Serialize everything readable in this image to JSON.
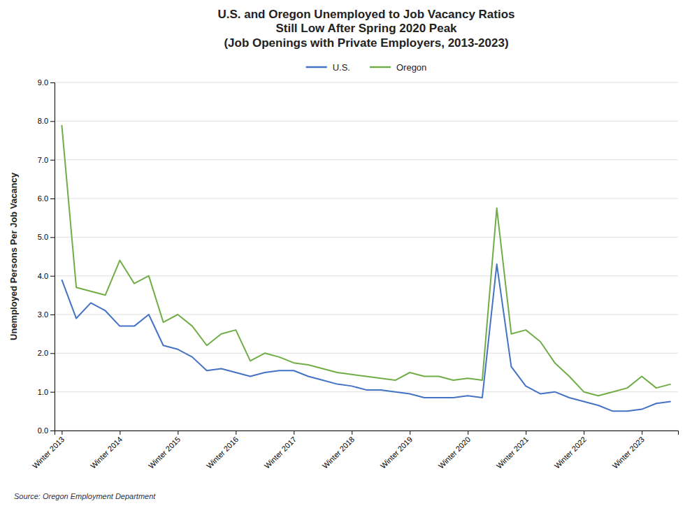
{
  "chart_data": {
    "type": "line",
    "title": "U.S. and Oregon Unemployed to Job Vacancy Ratios\nStill Low After Spring 2020 Peak\n(Job Openings with Private Employers, 2013-2023)",
    "y_label": "Unemployed Persons Per Job Vacancy",
    "annotations": [
      "Source: Oregon Employment Department"
    ],
    "categories": [
      "Winter 2013",
      null,
      null,
      null,
      "Winter 2014",
      null,
      null,
      null,
      "Winter 2015",
      null,
      null,
      null,
      "Winter 2016",
      null,
      null,
      null,
      "Winter 2017",
      null,
      null,
      null,
      "Winter 2018",
      null,
      null,
      null,
      "Winter 2019",
      null,
      null,
      null,
      "Winter 2020",
      null,
      null,
      null,
      "Winter 2021",
      null,
      null,
      null,
      "Winter 2022",
      null,
      null,
      null,
      "Winter 2023",
      null,
      null
    ],
    "series": [
      {
        "name": "U.S.",
        "color": "#4472C4",
        "values": [
          3.9,
          2.9,
          3.3,
          3.1,
          2.7,
          2.7,
          3.0,
          2.2,
          2.1,
          1.9,
          1.55,
          1.6,
          1.5,
          1.4,
          1.5,
          1.55,
          1.55,
          1.4,
          1.3,
          1.2,
          1.15,
          1.05,
          1.05,
          1.0,
          0.95,
          0.85,
          0.85,
          0.85,
          0.9,
          0.85,
          4.3,
          1.65,
          1.15,
          0.95,
          1.0,
          0.85,
          0.75,
          0.65,
          0.5,
          0.5,
          0.55,
          0.7,
          0.75
        ]
      },
      {
        "name": "Oregon",
        "color": "#70AD47",
        "values": [
          7.9,
          3.7,
          3.6,
          3.5,
          4.4,
          3.8,
          4.0,
          2.8,
          3.0,
          2.7,
          2.2,
          2.5,
          2.6,
          1.8,
          2.0,
          1.9,
          1.75,
          1.7,
          1.6,
          1.5,
          1.45,
          1.4,
          1.35,
          1.3,
          1.5,
          1.4,
          1.4,
          1.3,
          1.35,
          1.3,
          5.75,
          2.5,
          2.6,
          2.3,
          1.75,
          1.4,
          1.0,
          0.9,
          1.0,
          1.1,
          1.4,
          1.1,
          1.2
        ]
      }
    ],
    "ylim": [
      0.0,
      9.0
    ],
    "yticks": [
      {
        "value": 0,
        "label": "0.0"
      },
      {
        "value": 1,
        "label": "1.0"
      },
      {
        "value": 2,
        "label": "2.0"
      },
      {
        "value": 3,
        "label": "3.0"
      },
      {
        "value": 4,
        "label": "4.0"
      },
      {
        "value": 5,
        "label": "5.0"
      },
      {
        "value": 6,
        "label": "6.0"
      },
      {
        "value": 7,
        "label": "7.0"
      },
      {
        "value": 8,
        "label": "8.0"
      },
      {
        "value": 9,
        "label": "9.0"
      }
    ],
    "grid": true,
    "legend": "top"
  }
}
